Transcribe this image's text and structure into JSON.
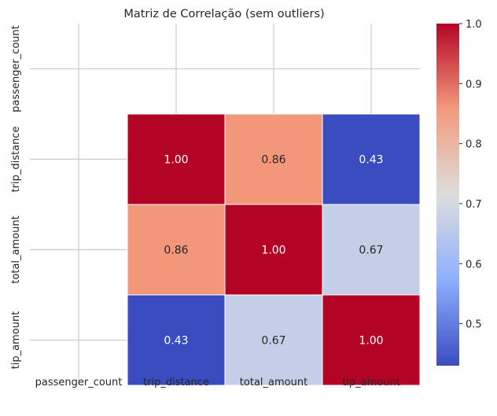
{
  "chart_data": {
    "type": "heatmap",
    "title": "Matriz de Correlação (sem outliers)",
    "columns": [
      "passenger_count",
      "trip_distance",
      "total_amount",
      "tip_amount"
    ],
    "rows": [
      "passenger_count",
      "trip_distance",
      "total_amount",
      "tip_amount"
    ],
    "values": [
      [
        null,
        null,
        null,
        null
      ],
      [
        null,
        1.0,
        0.86,
        0.43
      ],
      [
        null,
        0.86,
        1.0,
        0.67
      ],
      [
        null,
        0.43,
        0.67,
        1.0
      ]
    ],
    "annotations": [
      [
        "",
        "",
        "",
        ""
      ],
      [
        "",
        "1.00",
        "0.86",
        "0.43"
      ],
      [
        "",
        "0.86",
        "1.00",
        "0.67"
      ],
      [
        "",
        "0.43",
        "0.67",
        "1.00"
      ]
    ],
    "colormap": "coolwarm",
    "colorbar": {
      "range": [
        0.43,
        1.0
      ],
      "ticks": [
        0.5,
        0.6,
        0.7,
        0.8,
        0.9,
        1.0
      ],
      "tick_labels": [
        "0.5",
        "0.6",
        "0.7",
        "0.8",
        "0.9",
        "1.0"
      ]
    },
    "grid": true,
    "colors": {
      "low": "#3b4cc0",
      "mid": "#dddddd",
      "high": "#b40426",
      "grid": "#cccccc",
      "text": "#262626"
    }
  }
}
